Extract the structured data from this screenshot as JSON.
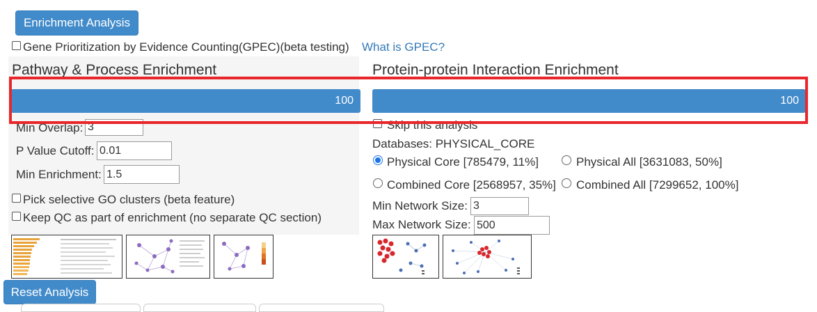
{
  "enrichment_button": "Enrichment Analysis",
  "gpec": {
    "label": "Gene Prioritization by Evidence Counting(GPEC)(beta testing)",
    "link": "What is GPEC?"
  },
  "pathway": {
    "title": "Pathway & Process Enrichment",
    "progress": "100",
    "min_overlap_label": "Min Overlap:",
    "min_overlap_value": "3",
    "p_value_label": "P Value Cutoff:",
    "p_value_value": "0.01",
    "min_enrichment_label": "Min Enrichment:",
    "min_enrichment_value": "1.5",
    "go_clusters_label": "Pick selective GO clusters (beta feature)",
    "keep_qc_label": "Keep QC as part of enrichment (no separate QC section)"
  },
  "ppi": {
    "title": "Protein-protein Interaction Enrichment",
    "progress": "100",
    "skip_label": "Skip this analysis",
    "databases_label": "Databases: PHYSICAL_CORE",
    "options": [
      {
        "label": "Physical Core [785479, 11%]",
        "selected": true
      },
      {
        "label": "Physical All [3631083, 50%]",
        "selected": false
      },
      {
        "label": "Combined Core [2568957, 35%]",
        "selected": false
      },
      {
        "label": "Combined All [7299652, 100%]",
        "selected": false
      }
    ],
    "min_network_label": "Min Network Size:",
    "min_network_value": "3",
    "max_network_label": "Max Network Size:",
    "max_network_value": "500"
  },
  "reset_button": "Reset Analysis",
  "colors": {
    "accent": "#428bca",
    "highlight": "#e8262b",
    "link": "#337ab7"
  }
}
